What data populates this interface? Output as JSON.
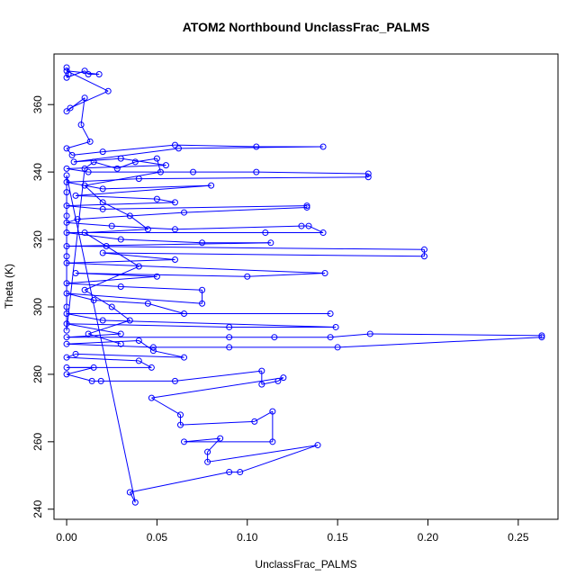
{
  "chart_data": {
    "type": "scatter",
    "title": "ATOM2 Northbound UnclassFrac_PALMS",
    "xlabel": "UnclassFrac_PALMS",
    "ylabel": "Theta (K)",
    "xlim": [
      -0.007,
      0.272
    ],
    "ylim": [
      237,
      375
    ],
    "x_ticks": [
      0.0,
      0.05,
      0.1,
      0.15,
      0.2,
      0.25
    ],
    "x_tick_labels": [
      "0.00",
      "0.05",
      "0.10",
      "0.15",
      "0.20",
      "0.25"
    ],
    "y_ticks": [
      240,
      260,
      280,
      300,
      320,
      340,
      360
    ],
    "y_tick_labels": [
      "240",
      "260",
      "280",
      "300",
      "320",
      "340",
      "360"
    ],
    "grid": false,
    "series_color": "#0000ff",
    "series": [
      {
        "values": [
          [
            0.0,
            371
          ],
          [
            0.001,
            369
          ],
          [
            0.0,
            368
          ],
          [
            0.01,
            370
          ],
          [
            0.012,
            369
          ],
          [
            0.018,
            369
          ],
          [
            0.0,
            370
          ],
          [
            0.023,
            364
          ],
          [
            0.002,
            359
          ],
          [
            0.0,
            358
          ],
          [
            0.01,
            362
          ],
          [
            0.008,
            354
          ],
          [
            0.013,
            349
          ],
          [
            0.0,
            347
          ],
          [
            0.003,
            345
          ],
          [
            0.02,
            346
          ],
          [
            0.06,
            348
          ],
          [
            0.105,
            347.5
          ],
          [
            0.142,
            347.5
          ],
          [
            0.062,
            347
          ],
          [
            0.004,
            343
          ],
          [
            0.03,
            344
          ],
          [
            0.055,
            342
          ],
          [
            0.0,
            341
          ],
          [
            0.012,
            340
          ],
          [
            0.07,
            340
          ],
          [
            0.105,
            340
          ],
          [
            0.167,
            339.5
          ],
          [
            0.167,
            338.5
          ],
          [
            0.04,
            338
          ],
          [
            0.0,
            337
          ],
          [
            0.02,
            335
          ],
          [
            0.08,
            336
          ],
          [
            0.005,
            333
          ],
          [
            0.05,
            332
          ],
          [
            0.06,
            331
          ],
          [
            0.0,
            330
          ],
          [
            0.02,
            329
          ],
          [
            0.133,
            330
          ],
          [
            0.133,
            329.5
          ],
          [
            0.065,
            328
          ],
          [
            0.006,
            326
          ],
          [
            0.0,
            325
          ],
          [
            0.025,
            324
          ],
          [
            0.06,
            323
          ],
          [
            0.13,
            324
          ],
          [
            0.134,
            324
          ],
          [
            0.142,
            322
          ],
          [
            0.11,
            322
          ],
          [
            0.0,
            322
          ],
          [
            0.03,
            320
          ],
          [
            0.075,
            319
          ],
          [
            0.113,
            319
          ],
          [
            0.0,
            318
          ],
          [
            0.198,
            317
          ],
          [
            0.198,
            315
          ],
          [
            0.02,
            316
          ],
          [
            0.06,
            314
          ],
          [
            0.0,
            313
          ],
          [
            0.143,
            310
          ],
          [
            0.1,
            309
          ],
          [
            0.005,
            310
          ],
          [
            0.05,
            309
          ],
          [
            0.0,
            307
          ],
          [
            0.03,
            306
          ],
          [
            0.075,
            305
          ],
          [
            0.075,
            301
          ],
          [
            0.0,
            304
          ],
          [
            0.015,
            302
          ],
          [
            0.045,
            301
          ],
          [
            0.065,
            298
          ],
          [
            0.146,
            298
          ],
          [
            0.0,
            298
          ],
          [
            0.02,
            296
          ],
          [
            0.149,
            294
          ],
          [
            0.09,
            294
          ],
          [
            0.0,
            295
          ],
          [
            0.03,
            292
          ],
          [
            0.0,
            291
          ],
          [
            0.09,
            291
          ],
          [
            0.115,
            291
          ],
          [
            0.146,
            291
          ],
          [
            0.168,
            292
          ],
          [
            0.263,
            291.5
          ],
          [
            0.263,
            291
          ],
          [
            0.15,
            288
          ],
          [
            0.09,
            288
          ],
          [
            0.048,
            288
          ],
          [
            0.0,
            289
          ],
          [
            0.04,
            290
          ],
          [
            0.048,
            287
          ],
          [
            0.065,
            285
          ],
          [
            0.005,
            286
          ],
          [
            0.0,
            285
          ],
          [
            0.04,
            284
          ],
          [
            0.047,
            282
          ],
          [
            0.0,
            282
          ],
          [
            0.015,
            282
          ],
          [
            0.0,
            280
          ],
          [
            0.014,
            278
          ],
          [
            0.019,
            278
          ],
          [
            0.06,
            278
          ],
          [
            0.108,
            281
          ],
          [
            0.108,
            277
          ],
          [
            0.117,
            278
          ],
          [
            0.12,
            279
          ],
          [
            0.047,
            273
          ],
          [
            0.063,
            268
          ],
          [
            0.063,
            265
          ],
          [
            0.104,
            266
          ],
          [
            0.114,
            269
          ],
          [
            0.114,
            260
          ],
          [
            0.065,
            260
          ],
          [
            0.085,
            261
          ],
          [
            0.078,
            257
          ],
          [
            0.078,
            254
          ],
          [
            0.139,
            259
          ],
          [
            0.096,
            251
          ],
          [
            0.09,
            251
          ],
          [
            0.035,
            245
          ],
          [
            0.038,
            242
          ],
          [
            0.0,
            339
          ],
          [
            0.0,
            334
          ],
          [
            0.0,
            327
          ],
          [
            0.0,
            315
          ],
          [
            0.0,
            300
          ],
          [
            0.0,
            293
          ],
          [
            0.01,
            341
          ],
          [
            0.015,
            343
          ],
          [
            0.028,
            341
          ],
          [
            0.038,
            343
          ],
          [
            0.05,
            344
          ],
          [
            0.052,
            340
          ],
          [
            0.01,
            336
          ],
          [
            0.02,
            331
          ],
          [
            0.035,
            327
          ],
          [
            0.045,
            323
          ],
          [
            0.01,
            322
          ],
          [
            0.022,
            318
          ],
          [
            0.04,
            312
          ],
          [
            0.01,
            305
          ],
          [
            0.025,
            300
          ],
          [
            0.035,
            296
          ],
          [
            0.012,
            292
          ],
          [
            0.03,
            289
          ]
        ]
      }
    ]
  }
}
